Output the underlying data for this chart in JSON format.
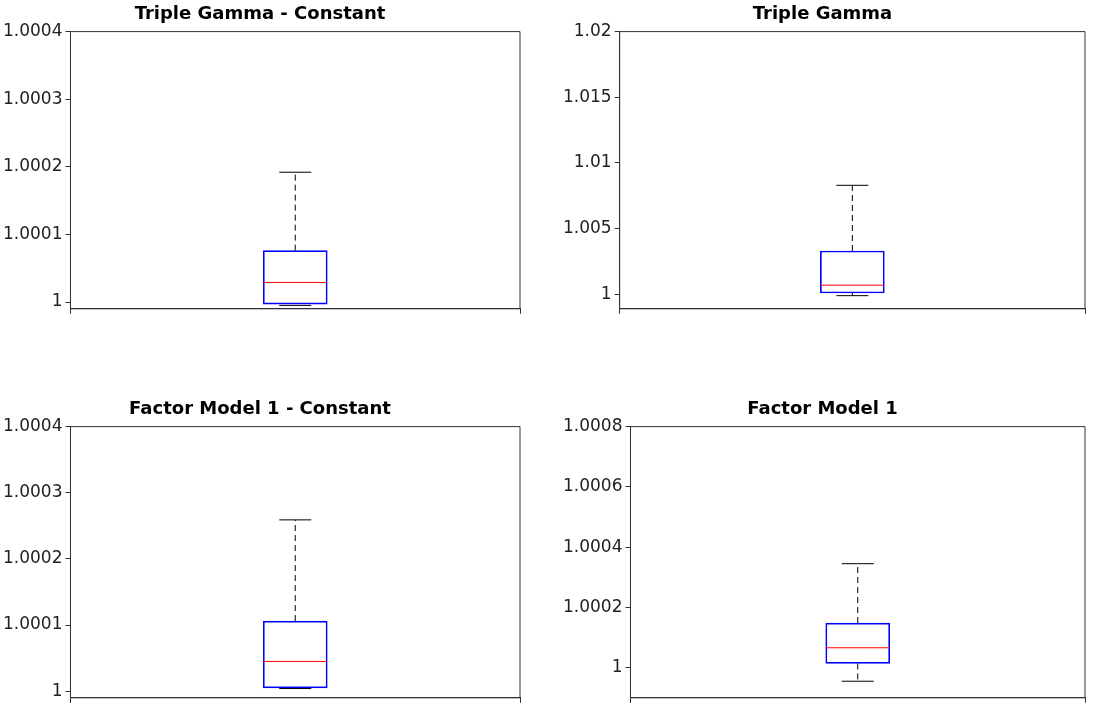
{
  "chart_data": [
    {
      "type": "box",
      "title": "Triple Gamma - Constant",
      "categories": [
        null
      ],
      "color": "#0000ff",
      "boxes": [
        {
          "low": 0.999995,
          "q1": 0.999997,
          "median": 1.000029,
          "q3": 1.000076,
          "high": 1.000192
        }
      ],
      "ylim": [
        0.99999,
        1.0004
      ],
      "yticks": [
        1,
        1.0001,
        1.0002,
        1.0003,
        1.0004
      ],
      "grid": false
    },
    {
      "type": "box",
      "title": "Triple Gamma",
      "categories": [
        null
      ],
      "color": "#0000ff",
      "boxes": [
        {
          "low": 0.9999,
          "q1": 1.0001,
          "median": 1.0007,
          "q3": 1.0033,
          "high": 1.0083
        }
      ],
      "ylim": [
        0.9989,
        1.02
      ],
      "yticks": [
        1,
        1.005,
        1.01,
        1.015,
        1.02
      ],
      "grid": false
    },
    {
      "type": "box",
      "title": "Factor Model 1 - Constant",
      "categories": [
        null
      ],
      "color": "#0000ff",
      "boxes": [
        {
          "low": 1.000004,
          "q1": 1.000005,
          "median": 1.000045,
          "q3": 1.000106,
          "high": 1.000259
        }
      ],
      "ylim": [
        0.99999,
        1.0004
      ],
      "yticks": [
        1,
        1.0001,
        1.0002,
        1.0003,
        1.0004
      ],
      "grid": false
    },
    {
      "type": "box",
      "title": "Factor Model 1",
      "categories": [
        null
      ],
      "color": "#0000ff",
      "boxes": [
        {
          "low": 0.999955,
          "q1": 1.000014,
          "median": 1.000066,
          "q3": 1.000148,
          "high": 1.000345
        }
      ],
      "ylim": [
        0.9999,
        1.0008
      ],
      "yticks": [
        1,
        1.0002,
        1.0004,
        1.0006,
        1.0008
      ],
      "grid": false
    }
  ]
}
